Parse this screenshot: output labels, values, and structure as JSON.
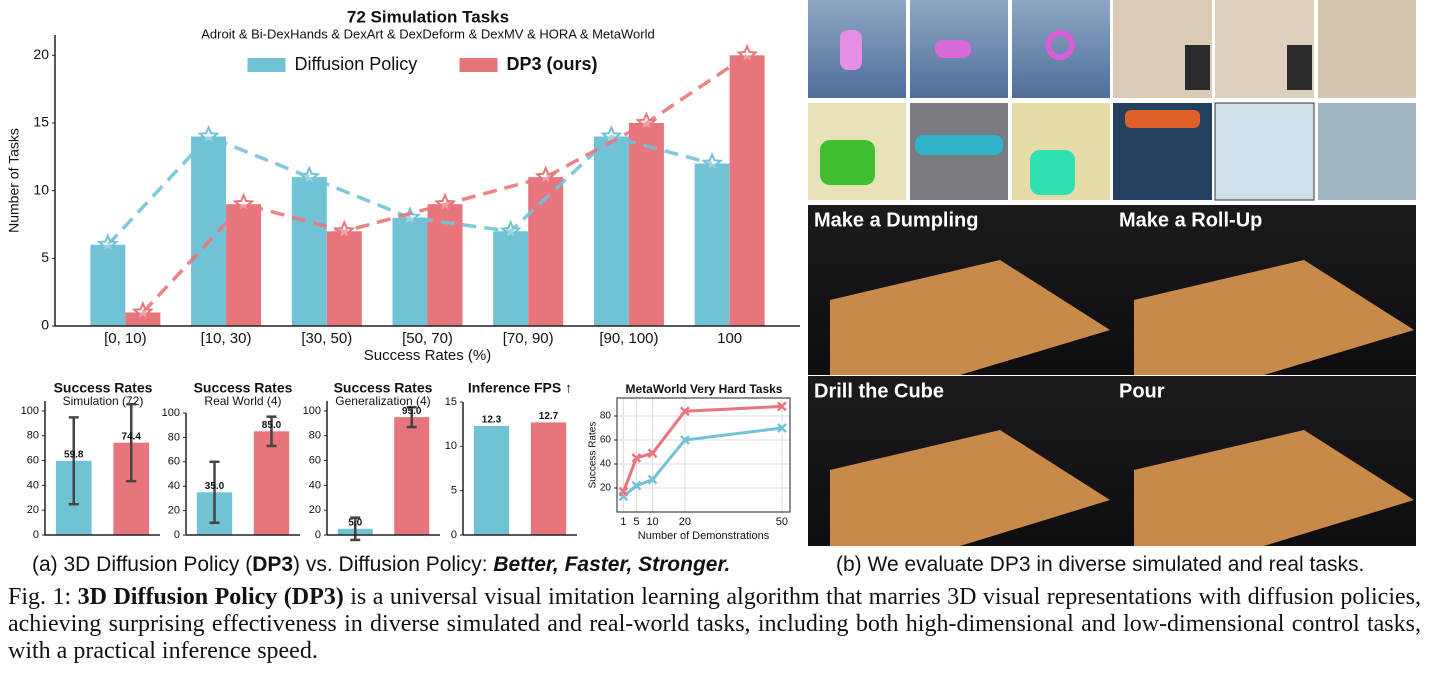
{
  "chart_data": [
    {
      "type": "bar",
      "title": "72 Simulation Tasks",
      "subtitle": "Adroit & Bi-DexHands & DexArt & DexDeform & DexMV & HORA & MetaWorld",
      "categories": [
        "[0, 10)",
        "[10, 30)",
        "[30, 50)",
        "[50, 70)",
        "[70, 90)",
        "[90, 100)",
        "100"
      ],
      "series": [
        {
          "name": "Diffusion Policy",
          "color": "#72c2d6",
          "values": [
            6,
            14,
            11,
            8,
            7,
            14,
            12
          ]
        },
        {
          "name": "DP3 (ours)",
          "color": "#e9757c",
          "values": [
            1,
            9,
            7,
            9,
            11,
            15,
            20
          ]
        }
      ],
      "overlay": "dashed-line-star",
      "legend": "upper center",
      "xlabel": "Success Rates (%)",
      "ylabel": "Number of Tasks",
      "ylim": [
        0,
        21.5
      ],
      "yticks": [
        0,
        5,
        10,
        15,
        20
      ],
      "grid": false
    },
    {
      "type": "bar",
      "title": "Success Rates",
      "subtitle": "Simulation (72)",
      "values": [
        59.8,
        74.4
      ],
      "errors": [
        35,
        31
      ],
      "colors": [
        "#72c2d6",
        "#e9757c"
      ],
      "ylim": [
        0,
        108
      ],
      "yticks": [
        0,
        20,
        40,
        60,
        80,
        100
      ],
      "grid": false
    },
    {
      "type": "bar",
      "title": "Success Rates",
      "subtitle": "Real World (4)",
      "values": [
        35,
        85
      ],
      "value_labels": [
        "35.0",
        "85.0"
      ],
      "errors": [
        25,
        12
      ],
      "colors": [
        "#72c2d6",
        "#e9757c"
      ],
      "ylim": [
        0,
        100
      ],
      "yticks": [
        0,
        20,
        40,
        60,
        80,
        100
      ],
      "grid": false
    },
    {
      "type": "bar",
      "title": "Success Rates",
      "subtitle": "Generalization (4)",
      "values": [
        5,
        95
      ],
      "value_labels": [
        "5.0",
        "95.0"
      ],
      "errors": [
        9,
        8
      ],
      "colors": [
        "#72c2d6",
        "#e9757c"
      ],
      "ylim": [
        0,
        108
      ],
      "yticks": [
        0,
        20,
        40,
        60,
        80,
        100
      ],
      "grid": false
    },
    {
      "type": "bar",
      "title": "Inference FPS ↑",
      "values": [
        12.3,
        12.7
      ],
      "colors": [
        "#72c2d6",
        "#e9757c"
      ],
      "ylim": [
        0,
        15
      ],
      "yticks": [
        0,
        5,
        10,
        15
      ],
      "grid": false
    },
    {
      "type": "line",
      "title": "MetaWorld Very Hard Tasks",
      "x": [
        1,
        5,
        10,
        20,
        50
      ],
      "series": [
        {
          "color": "#72c2d6",
          "values": [
            13,
            22,
            27,
            60,
            70
          ]
        },
        {
          "color": "#e9757c",
          "values": [
            17,
            45,
            49,
            84,
            88
          ]
        }
      ],
      "xlabel": "Number of Demonstrations",
      "ylabel": "Success Rates",
      "xlim": [
        -1,
        52.5
      ],
      "xticks": [
        1,
        5,
        10,
        20,
        50
      ],
      "ylim": [
        0,
        95
      ],
      "yticks": [
        20,
        40,
        60,
        80
      ],
      "grid": true
    }
  ],
  "panel_a_caption": [
    "(a) 3D Diffusion Policy (",
    "DP3",
    ") vs. Diffusion Policy: ",
    "Better, Faster, Stronger."
  ],
  "panel_b_caption": "(b) We evaluate DP3 in diverse simulated and real tasks.",
  "real_tasks": [
    "Make a Dumpling",
    "Make a Roll-Up",
    "Drill the Cube",
    "Pour"
  ],
  "figure_caption": [
    "Fig. 1: ",
    "3D Diffusion Policy (DP3)",
    " is a universal visual imitation learning algorithm that marries 3D visual representations with diffusion policies, achieving surprising effectiveness in diverse simulated and real-world tasks, including both high-dimensional and low-dimensional control tasks, with a practical inference speed."
  ]
}
